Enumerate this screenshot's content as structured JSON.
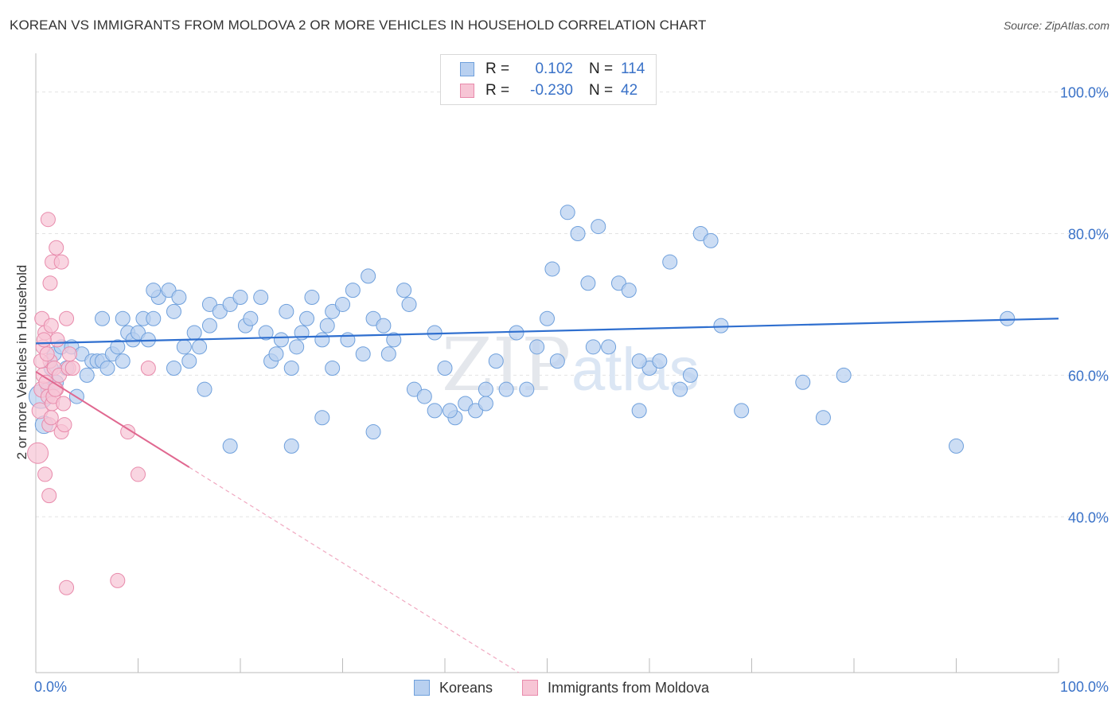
{
  "chart_data": {
    "type": "scatter",
    "title": "KOREAN VS IMMIGRANTS FROM MOLDOVA 2 OR MORE VEHICLES IN HOUSEHOLD CORRELATION CHART",
    "source": "Source: ZipAtlas.com",
    "ylabel": "2 or more Vehicles in Household",
    "xlabel": "",
    "xlim": [
      0,
      100
    ],
    "ylim": [
      18,
      104
    ],
    "x_tick_labels": {
      "left": "0.0%",
      "right": "100.0%"
    },
    "y_ticks": [
      {
        "value": 100,
        "label": "100.0%"
      },
      {
        "value": 80,
        "label": "80.0%"
      },
      {
        "value": 60,
        "label": "60.0%"
      },
      {
        "value": 40,
        "label": "40.0%"
      }
    ],
    "watermark": {
      "zip": "ZIP",
      "atlas": "atlas"
    },
    "legend": {
      "rows": [
        {
          "r_label": "R =",
          "r_value": "0.102",
          "n_label": "N =",
          "n_value": "114"
        },
        {
          "r_label": "R =",
          "r_value": "-0.230",
          "n_label": "N =",
          "n_value": "42"
        }
      ]
    },
    "series": [
      {
        "name": "Koreans",
        "color": "#6fa0dc",
        "fill": "#b8d0f0",
        "trend": {
          "x0": 0,
          "y0": 64.5,
          "x1": 100,
          "y1": 68.0
        },
        "points": [
          [
            0.5,
            57,
            15
          ],
          [
            0.8,
            53,
            11
          ],
          [
            1.2,
            58,
            9
          ],
          [
            1.5,
            61,
            9
          ],
          [
            1.8,
            63,
            9
          ],
          [
            2.0,
            59,
            9
          ],
          [
            2.5,
            64,
            9
          ],
          [
            3.0,
            61,
            9
          ],
          [
            3.5,
            64,
            9
          ],
          [
            4.0,
            57,
            9
          ],
          [
            4.5,
            63,
            9
          ],
          [
            5.0,
            60,
            9
          ],
          [
            5.5,
            62,
            9
          ],
          [
            6.0,
            62,
            9
          ],
          [
            6.5,
            62,
            9
          ],
          [
            7.0,
            61,
            9
          ],
          [
            7.5,
            63,
            9
          ],
          [
            8.0,
            64,
            9
          ],
          [
            8.5,
            62,
            9
          ],
          [
            9.0,
            66,
            9
          ],
          [
            9.5,
            65,
            9
          ],
          [
            10.0,
            66,
            9
          ],
          [
            10.5,
            68,
            9
          ],
          [
            11.0,
            65,
            9
          ],
          [
            11.5,
            68,
            9
          ],
          [
            12.0,
            71,
            9
          ],
          [
            13.0,
            72,
            9
          ],
          [
            13.5,
            69,
            9
          ],
          [
            14.0,
            71,
            9
          ],
          [
            15.0,
            62,
            9
          ],
          [
            15.5,
            66,
            9
          ],
          [
            16.0,
            64,
            9
          ],
          [
            17.0,
            70,
            9
          ],
          [
            18.0,
            69,
            9
          ],
          [
            19.0,
            70,
            9
          ],
          [
            20.0,
            71,
            9
          ],
          [
            20.5,
            67,
            9
          ],
          [
            21.0,
            68,
            9
          ],
          [
            22.0,
            71,
            9
          ],
          [
            22.5,
            66,
            9
          ],
          [
            23.0,
            62,
            9
          ],
          [
            24.0,
            65,
            9
          ],
          [
            24.5,
            69,
            9
          ],
          [
            25.0,
            61,
            9
          ],
          [
            25.5,
            64,
            9
          ],
          [
            26.0,
            66,
            9
          ],
          [
            26.5,
            68,
            9
          ],
          [
            27.0,
            71,
            9
          ],
          [
            28.0,
            65,
            9
          ],
          [
            28.5,
            67,
            9
          ],
          [
            29.0,
            69,
            9
          ],
          [
            30.0,
            70,
            9
          ],
          [
            30.5,
            65,
            9
          ],
          [
            31.0,
            72,
            9
          ],
          [
            32.0,
            63,
            9
          ],
          [
            32.5,
            74,
            9
          ],
          [
            33.0,
            68,
            9
          ],
          [
            34.0,
            67,
            9
          ],
          [
            34.5,
            63,
            9
          ],
          [
            35.0,
            65,
            9
          ],
          [
            36.0,
            72,
            9
          ],
          [
            36.5,
            70,
            9
          ],
          [
            37.0,
            58,
            9
          ],
          [
            38.0,
            57,
            9
          ],
          [
            39.0,
            66,
            9
          ],
          [
            40.0,
            61,
            9
          ],
          [
            41.0,
            54,
            9
          ],
          [
            42.0,
            56,
            9
          ],
          [
            43.0,
            55,
            9
          ],
          [
            44.0,
            56,
            9
          ],
          [
            45.0,
            62,
            9
          ],
          [
            46.0,
            58,
            9
          ],
          [
            47.0,
            66,
            9
          ],
          [
            48.0,
            58,
            9
          ],
          [
            49.0,
            64,
            9
          ],
          [
            50.0,
            68,
            9
          ],
          [
            50.5,
            75,
            9
          ],
          [
            51.0,
            62,
            9
          ],
          [
            52.0,
            83,
            9
          ],
          [
            53.0,
            80,
            9
          ],
          [
            54.0,
            73,
            9
          ],
          [
            55.0,
            81,
            9
          ],
          [
            56.0,
            64,
            9
          ],
          [
            57.0,
            73,
            9
          ],
          [
            58.0,
            72,
            9
          ],
          [
            59.0,
            55,
            9
          ],
          [
            60.0,
            61,
            9
          ],
          [
            61.0,
            62,
            9
          ],
          [
            62.0,
            76,
            9
          ],
          [
            63.0,
            58,
            9
          ],
          [
            64.0,
            60,
            9
          ],
          [
            65.0,
            80,
            9
          ],
          [
            66.0,
            79,
            9
          ],
          [
            67.0,
            67,
            9
          ],
          [
            25.0,
            50,
            9
          ],
          [
            19.0,
            50,
            9
          ],
          [
            33.0,
            52,
            9
          ],
          [
            28.0,
            54,
            9
          ],
          [
            39.0,
            55,
            9
          ],
          [
            40.5,
            55,
            9
          ],
          [
            13.5,
            61,
            9
          ],
          [
            16.5,
            58,
            9
          ],
          [
            29.0,
            61,
            9
          ],
          [
            23.5,
            63,
            9
          ],
          [
            14.5,
            64,
            9
          ],
          [
            17.0,
            67,
            9
          ],
          [
            44.0,
            58,
            9
          ],
          [
            69.0,
            55,
            9
          ],
          [
            75.0,
            59,
            9
          ],
          [
            77.0,
            54,
            9
          ],
          [
            79.0,
            60,
            9
          ],
          [
            90.0,
            50,
            9
          ],
          [
            95.0,
            68,
            9
          ],
          [
            11.5,
            72,
            9
          ],
          [
            6.5,
            68,
            9
          ],
          [
            8.5,
            68,
            9
          ],
          [
            54.5,
            64,
            9
          ],
          [
            59.0,
            62,
            9
          ]
        ]
      },
      {
        "name": "Immigrants from Moldova",
        "color": "#e88aab",
        "fill": "#f7c5d5",
        "trend": {
          "x0": 0,
          "y0": 60.5,
          "x1": 100,
          "y1": -29.5,
          "solid_until_x": 15
        },
        "points": [
          [
            0.2,
            49,
            13
          ],
          [
            0.4,
            55,
            10
          ],
          [
            0.6,
            58,
            10
          ],
          [
            0.8,
            60,
            10
          ],
          [
            1.0,
            59,
            9
          ],
          [
            1.2,
            57,
            9
          ],
          [
            1.4,
            62,
            9
          ],
          [
            1.6,
            56,
            9
          ],
          [
            1.8,
            61,
            9
          ],
          [
            2.0,
            58,
            9
          ],
          [
            0.5,
            62,
            9
          ],
          [
            0.7,
            64,
            9
          ],
          [
            0.9,
            66,
            9
          ],
          [
            1.1,
            63,
            9
          ],
          [
            1.3,
            53,
            9
          ],
          [
            1.5,
            54,
            9
          ],
          [
            1.7,
            57,
            9
          ],
          [
            1.9,
            58,
            9
          ],
          [
            2.1,
            65,
            9
          ],
          [
            2.3,
            60,
            9
          ],
          [
            2.5,
            52,
            9
          ],
          [
            2.7,
            56,
            9
          ],
          [
            3.0,
            68,
            9
          ],
          [
            3.2,
            61,
            9
          ],
          [
            1.4,
            73,
            9
          ],
          [
            1.6,
            76,
            9
          ],
          [
            2.0,
            78,
            9
          ],
          [
            2.5,
            76,
            9
          ],
          [
            1.2,
            82,
            9
          ],
          [
            0.8,
            65,
            9
          ],
          [
            0.6,
            68,
            9
          ],
          [
            0.9,
            46,
            9
          ],
          [
            1.3,
            43,
            9
          ],
          [
            2.8,
            53,
            9
          ],
          [
            3.3,
            63,
            9
          ],
          [
            3.6,
            61,
            9
          ],
          [
            9.0,
            52,
            9
          ],
          [
            10.0,
            46,
            9
          ],
          [
            11.0,
            61,
            9
          ],
          [
            3.0,
            30,
            9
          ],
          [
            8.0,
            31,
            9
          ],
          [
            1.5,
            67,
            9
          ]
        ]
      }
    ]
  }
}
